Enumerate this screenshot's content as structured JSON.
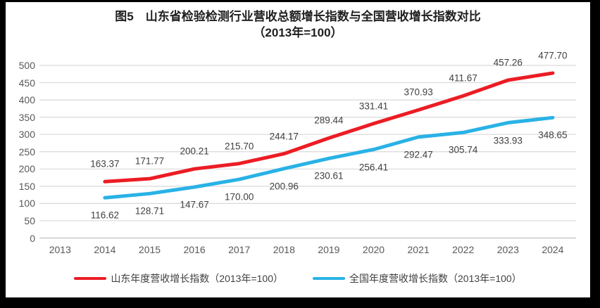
{
  "title": {
    "line1": "图5　山东省检验检测行业营收总额增长指数与全国营收增长指数对比",
    "line2": "（2013年=100）"
  },
  "chart_data": {
    "type": "line",
    "categories": [
      2013,
      2014,
      2015,
      2016,
      2017,
      2018,
      2019,
      2020,
      2021,
      2022,
      2023,
      2024
    ],
    "series": [
      {
        "name": "山东年度营收增长指数（2013年=100）",
        "color": "#ec1c24",
        "start_category": 2014,
        "values": [
          163.37,
          171.77,
          200.21,
          215.7,
          244.17,
          289.44,
          331.41,
          370.93,
          411.67,
          457.26,
          477.7
        ],
        "label_side": "above"
      },
      {
        "name": "全国年度营收增长指数（2013年=100）",
        "color": "#29b2e6",
        "start_category": 2014,
        "values": [
          116.62,
          128.71,
          147.67,
          170.0,
          200.96,
          230.61,
          256.41,
          292.47,
          305.74,
          333.93,
          348.65
        ],
        "label_side": "below"
      }
    ],
    "title": "图5　山东省检验检测行业营收总额增长指数与全国营收增长指数对比（2013年=100）",
    "xlabel": "",
    "ylabel": "",
    "ylim": [
      0,
      500
    ],
    "yticks": [
      0,
      50,
      100,
      150,
      200,
      250,
      300,
      350,
      400,
      450,
      500
    ],
    "grid": true,
    "legend_position": "bottom"
  },
  "colors": {
    "frame_background": "#000000",
    "chart_background": "#ffffff",
    "gridline": "#d9d9d9",
    "axis_line": "#bfbfbf",
    "tick_text": "#595959",
    "data_label_text": "#404040",
    "title_text": "#1f1f1f"
  }
}
